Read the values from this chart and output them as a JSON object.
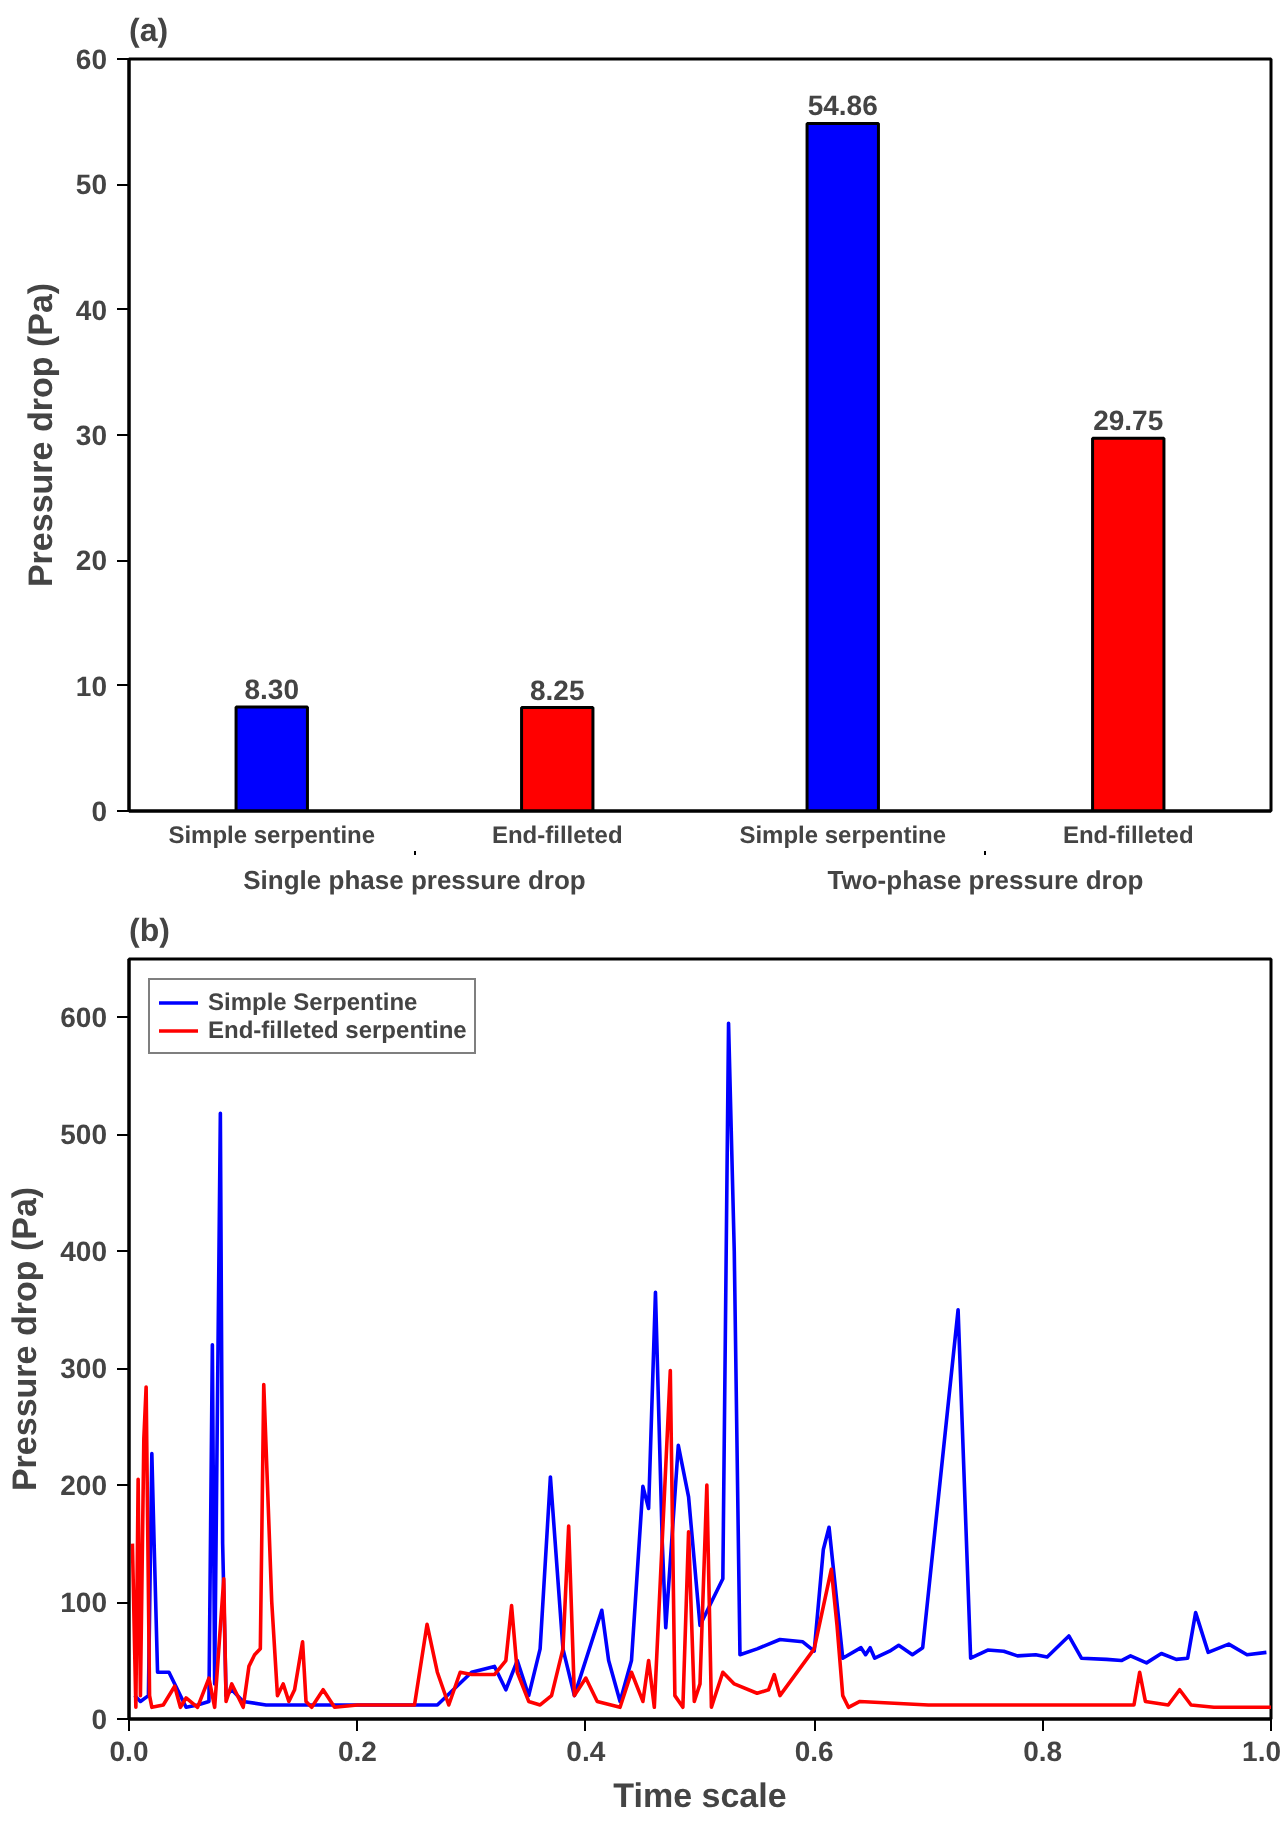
{
  "chart_data": [
    {
      "type": "bar",
      "title": "(a)",
      "ylabel": "Pressure drop (Pa)",
      "categories": [
        "Simple serpentine",
        "End-filleted",
        "Simple serpentine",
        "End-filleted"
      ],
      "values": [
        8.3,
        8.25,
        54.86,
        29.75
      ],
      "colors": [
        "#0000ff",
        "#ff0000",
        "#0000ff",
        "#ff0000"
      ],
      "value_labels": [
        "8.30",
        "8.25",
        "54.86",
        "29.75"
      ],
      "annotations": [
        "Single phase pressure drop",
        "Two-phase pressure drop"
      ],
      "ylim": [
        0,
        60
      ],
      "yticks": [
        0,
        10,
        20,
        30,
        40,
        50,
        60
      ],
      "grid": false
    },
    {
      "type": "line",
      "title": "(b)",
      "xlabel": "Time scale",
      "ylabel": "Pressure drop (Pa)",
      "xlim": [
        0,
        1
      ],
      "xticks": [
        {
          "value": 0,
          "label": "0.0"
        },
        {
          "value": 0.2,
          "label": "0.2"
        },
        {
          "value": 0.4,
          "label": "0.4"
        },
        {
          "value": 0.6,
          "label": "0.6"
        },
        {
          "value": 0.8,
          "label": "0.8"
        },
        {
          "value": 1,
          "label": "1.0"
        }
      ],
      "ylim": [
        0,
        650
      ],
      "yticks": [
        0,
        100,
        200,
        300,
        400,
        500,
        600
      ],
      "grid": false,
      "legend": "top left",
      "line_style": "solid",
      "series": [
        {
          "name": "Simple Serpentine",
          "color": "#0000ff",
          "x": [
            0.005,
            0.01,
            0.017,
            0.02,
            0.022,
            0.025,
            0.035,
            0.045,
            0.05,
            0.06,
            0.07,
            0.073,
            0.075,
            0.08,
            0.082,
            0.085,
            0.09,
            0.1,
            0.12,
            0.15,
            0.2,
            0.27,
            0.3,
            0.32,
            0.33,
            0.34,
            0.35,
            0.36,
            0.369,
            0.38,
            0.39,
            0.414,
            0.42,
            0.43,
            0.44,
            0.45,
            0.455,
            0.461,
            0.467,
            0.47,
            0.481,
            0.49,
            0.5,
            0.51,
            0.52,
            0.525,
            0.53,
            0.535,
            0.55,
            0.57,
            0.59,
            0.6,
            0.608,
            0.613,
            0.625,
            0.641,
            0.645,
            0.649,
            0.653,
            0.666,
            0.674,
            0.686,
            0.695,
            0.726,
            0.737,
            0.752,
            0.766,
            0.778,
            0.794,
            0.804,
            0.823,
            0.834,
            0.856,
            0.869,
            0.877,
            0.891,
            0.904,
            0.917,
            0.927,
            0.934,
            0.945,
            0.963,
            0.979,
            0.996
          ],
          "values": [
            20,
            15,
            20,
            227,
            150,
            40,
            40,
            20,
            10,
            12,
            15,
            320,
            30,
            518,
            150,
            20,
            25,
            15,
            12,
            12,
            12,
            12,
            40,
            45,
            25,
            50,
            20,
            60,
            207,
            60,
            20,
            93,
            50,
            15,
            50,
            199,
            180,
            365,
            150,
            78,
            234,
            190,
            80,
            100,
            120,
            595,
            400,
            55,
            60,
            68,
            66,
            58,
            145,
            164,
            52,
            61,
            55,
            61,
            52,
            58,
            63,
            55,
            61,
            350,
            52,
            59,
            58,
            54,
            55,
            53,
            71,
            52,
            51,
            50,
            54,
            48,
            56,
            51,
            52,
            91,
            57,
            64,
            55,
            57
          ]
        },
        {
          "name": "End-filleted serpentine",
          "color": "#ff0000",
          "x": [
            0.003,
            0.006,
            0.008,
            0.01,
            0.013,
            0.015,
            0.018,
            0.02,
            0.03,
            0.04,
            0.045,
            0.05,
            0.06,
            0.07,
            0.075,
            0.083,
            0.085,
            0.09,
            0.1,
            0.105,
            0.11,
            0.115,
            0.118,
            0.122,
            0.125,
            0.13,
            0.135,
            0.14,
            0.145,
            0.152,
            0.155,
            0.16,
            0.17,
            0.18,
            0.2,
            0.25,
            0.261,
            0.27,
            0.28,
            0.29,
            0.3,
            0.32,
            0.33,
            0.335,
            0.34,
            0.35,
            0.36,
            0.37,
            0.38,
            0.385,
            0.39,
            0.4,
            0.41,
            0.43,
            0.44,
            0.45,
            0.455,
            0.46,
            0.474,
            0.478,
            0.485,
            0.49,
            0.495,
            0.5,
            0.506,
            0.51,
            0.52,
            0.53,
            0.55,
            0.56,
            0.565,
            0.57,
            0.6,
            0.615,
            0.62,
            0.625,
            0.63,
            0.64,
            0.7,
            0.88,
            0.885,
            0.89,
            0.91,
            0.92,
            0.93,
            0.95,
            1.0
          ],
          "values": [
            150,
            10,
            205,
            20,
            240,
            284,
            20,
            10,
            12,
            28,
            10,
            18,
            10,
            35,
            10,
            120,
            15,
            30,
            10,
            45,
            55,
            60,
            286,
            180,
            100,
            20,
            30,
            15,
            25,
            66,
            15,
            10,
            25,
            10,
            12,
            12,
            81,
            40,
            12,
            40,
            38,
            38,
            50,
            97,
            40,
            15,
            12,
            20,
            60,
            165,
            20,
            35,
            15,
            10,
            40,
            15,
            50,
            10,
            298,
            20,
            10,
            160,
            15,
            30,
            200,
            10,
            40,
            30,
            22,
            25,
            38,
            20,
            60,
            128,
            80,
            20,
            10,
            15,
            12,
            12,
            40,
            15,
            12,
            25,
            12,
            10,
            10
          ]
        }
      ]
    }
  ]
}
